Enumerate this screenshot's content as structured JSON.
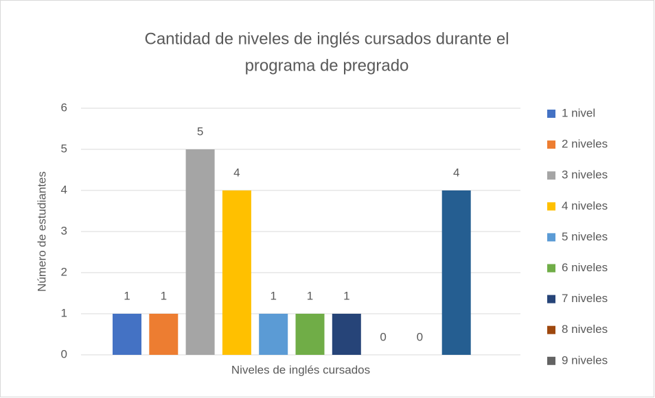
{
  "chart_data": {
    "type": "bar",
    "title": [
      "Cantidad de niveles de inglés cursados durante el",
      "programa de pregrado"
    ],
    "x_label": "Niveles de inglés cursados",
    "y_label": "Número de estudiantes",
    "ylim": [
      0,
      6
    ],
    "yticks": [
      0,
      1,
      2,
      3,
      4,
      5,
      6
    ],
    "grid": true,
    "legend": "right",
    "series": [
      {
        "name": "1 nivel",
        "color": "#4472c4",
        "values": [
          1
        ]
      },
      {
        "name": "2 niveles",
        "color": "#ed7d31",
        "values": [
          1
        ]
      },
      {
        "name": "3 niveles",
        "color": "#a5a5a5",
        "values": [
          5
        ]
      },
      {
        "name": "4 niveles",
        "color": "#ffc000",
        "values": [
          4
        ]
      },
      {
        "name": "5 niveles",
        "color": "#5b9bd5",
        "values": [
          1
        ]
      },
      {
        "name": "6 niveles",
        "color": "#70ad47",
        "values": [
          1
        ]
      },
      {
        "name": "7 niveles",
        "color": "#264478",
        "values": [
          1
        ]
      },
      {
        "name": "8 niveles",
        "color": "#9e480e",
        "values": [
          0
        ]
      },
      {
        "name": "9 niveles",
        "color": "#636363",
        "values": [
          0
        ]
      },
      {
        "name": null,
        "color": "#255e91",
        "values": [
          4
        ]
      }
    ]
  }
}
